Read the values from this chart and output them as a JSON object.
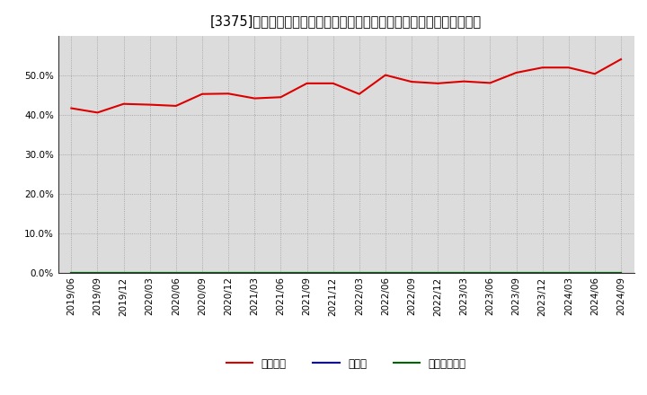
{
  "title": "[3375]　自己資本、のれん、繰延税金資産の総資産に対する比率の推移",
  "x_labels": [
    "2019/06",
    "2019/09",
    "2019/12",
    "2020/03",
    "2020/06",
    "2020/09",
    "2020/12",
    "2021/03",
    "2021/06",
    "2021/09",
    "2021/12",
    "2022/03",
    "2022/06",
    "2022/09",
    "2022/12",
    "2023/03",
    "2023/06",
    "2023/09",
    "2023/12",
    "2024/03",
    "2024/06",
    "2024/09"
  ],
  "equity_ratio": [
    0.416,
    0.405,
    0.427,
    0.425,
    0.422,
    0.452,
    0.453,
    0.441,
    0.444,
    0.479,
    0.479,
    0.452,
    0.5,
    0.483,
    0.479,
    0.484,
    0.48,
    0.506,
    0.519,
    0.519,
    0.503,
    0.54
  ],
  "noren_ratio": [
    0,
    0,
    0,
    0,
    0,
    0,
    0,
    0,
    0,
    0,
    0,
    0,
    0,
    0,
    0,
    0,
    0,
    0,
    0,
    0,
    0,
    0
  ],
  "deferred_tax_ratio": [
    0,
    0,
    0,
    0,
    0,
    0,
    0,
    0,
    0,
    0,
    0,
    0,
    0,
    0,
    0,
    0,
    0,
    0,
    0,
    0,
    0,
    0
  ],
  "equity_color": "#dd0000",
  "noren_color": "#0000cc",
  "deferred_tax_color": "#006600",
  "background_color": "#ffffff",
  "plot_bg_color": "#dcdcdc",
  "ylim": [
    0.0,
    0.6
  ],
  "yticks": [
    0.0,
    0.1,
    0.2,
    0.3,
    0.4,
    0.5
  ],
  "legend_labels": [
    "自己資本",
    "のれん",
    "繰延税金資産"
  ],
  "title_fontsize": 10.5,
  "axis_fontsize": 7.5,
  "legend_fontsize": 8.5
}
